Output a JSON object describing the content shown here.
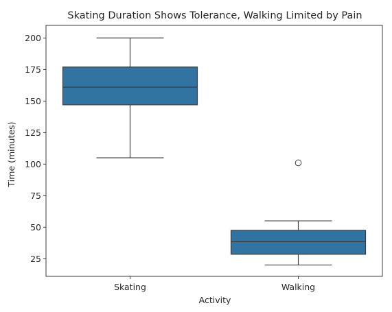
{
  "chart_data": {
    "type": "box",
    "title": "Skating Duration Shows Tolerance, Walking Limited by Pain",
    "xlabel": "Activity",
    "ylabel": "Time (minutes)",
    "ylim": [
      11,
      210
    ],
    "yticks": [
      25,
      50,
      75,
      100,
      125,
      150,
      175,
      200
    ],
    "categories": [
      "Skating",
      "Walking"
    ],
    "boxes": [
      {
        "category": "Skating",
        "whisker_low": 105,
        "q1": 147,
        "median": 161,
        "q3": 177,
        "whisker_high": 200,
        "outliers": []
      },
      {
        "category": "Walking",
        "whisker_low": 20,
        "q1": 28.5,
        "median": 38.5,
        "q3": 47.5,
        "whisker_high": 55,
        "outliers": [
          101
        ]
      }
    ],
    "box_color": "#3274a1",
    "line_color": "#3d3d3d",
    "grid": false,
    "legend": "none"
  }
}
